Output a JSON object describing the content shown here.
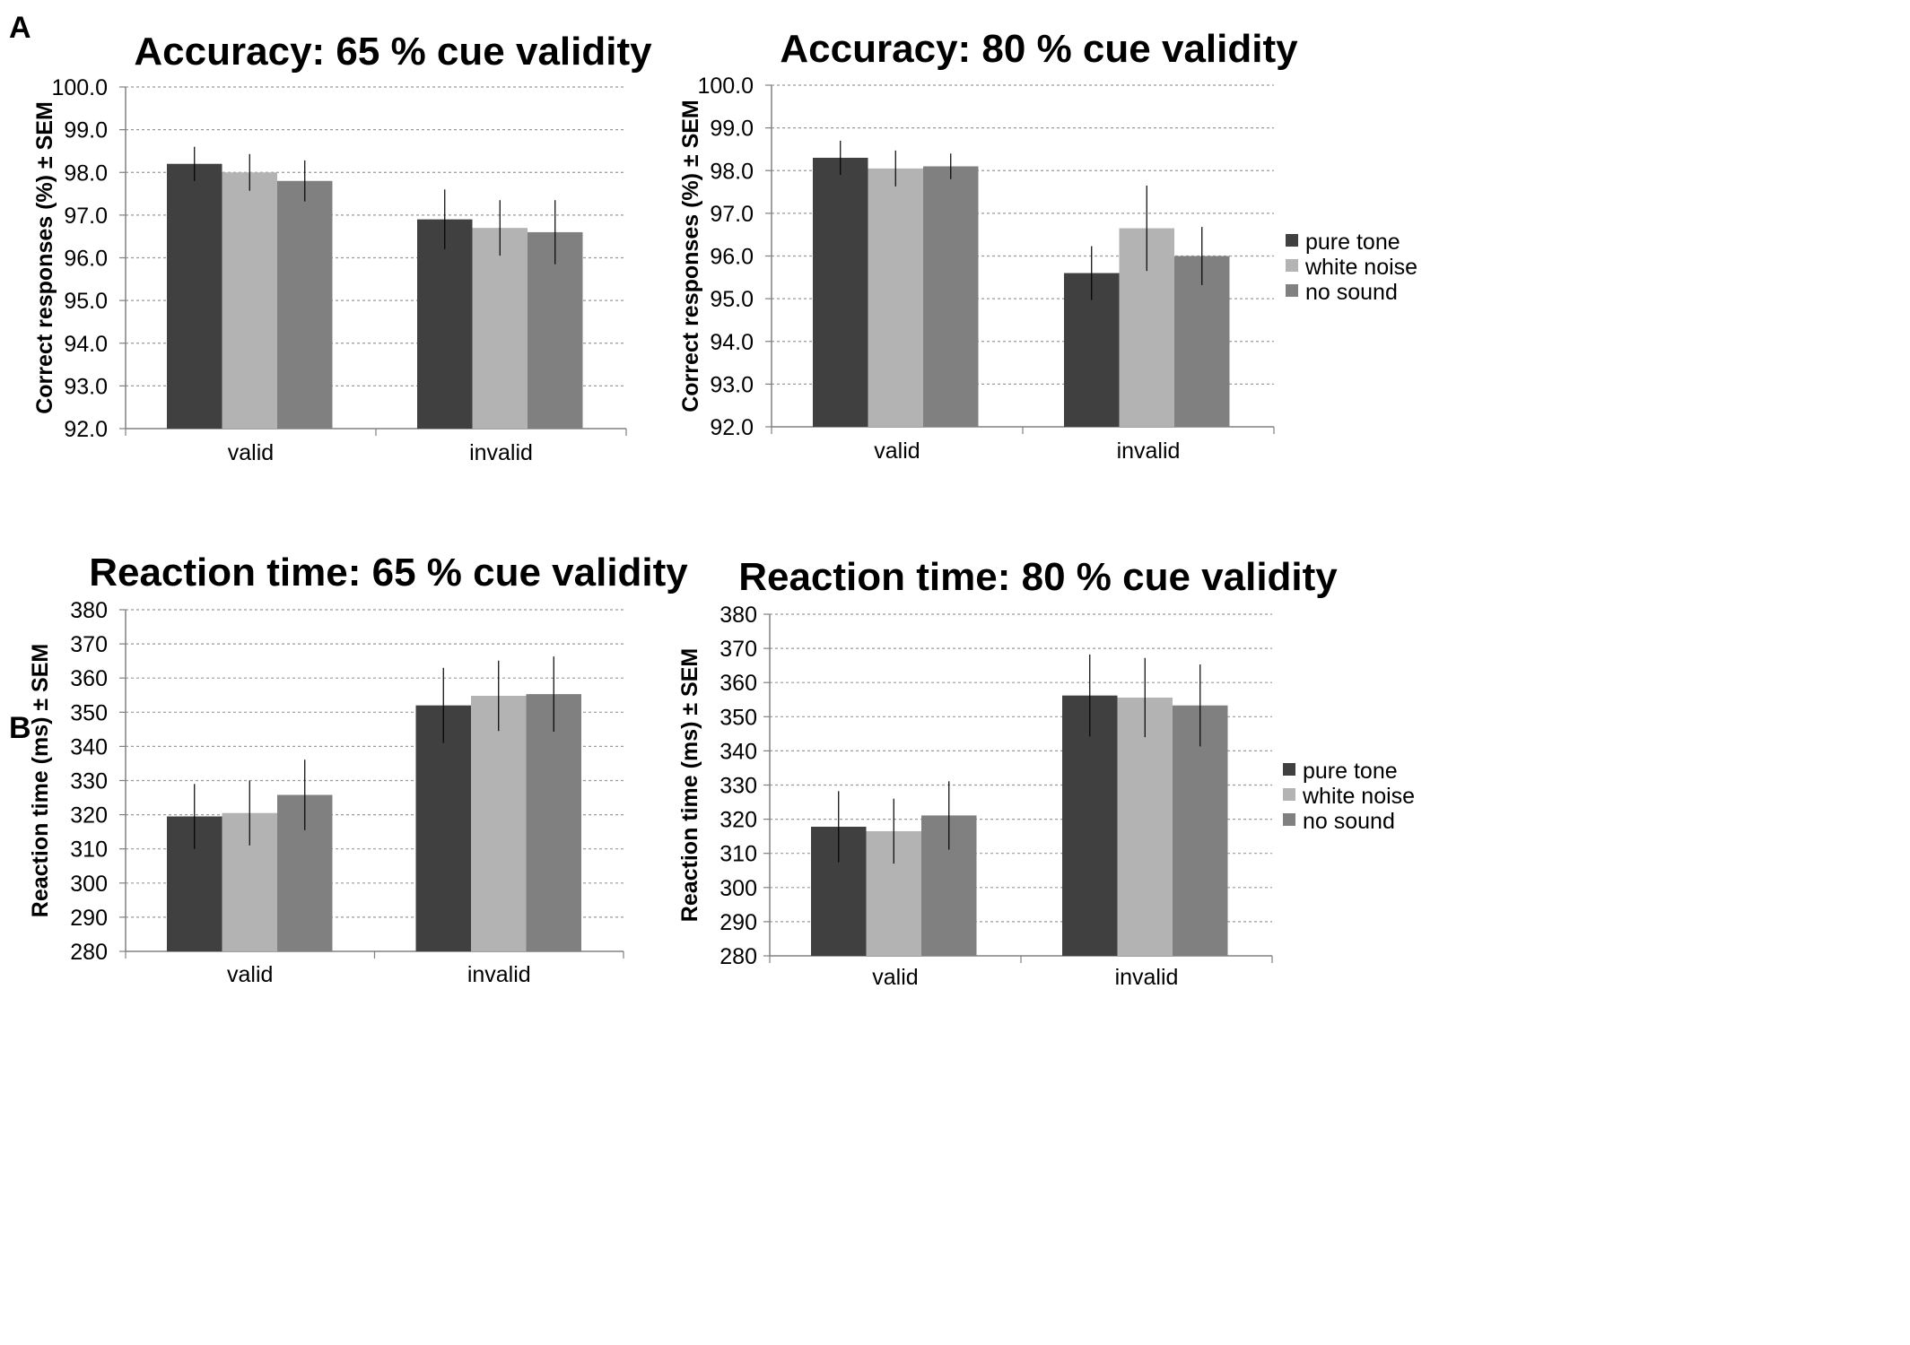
{
  "figure": {
    "panel_labels": [
      "A",
      "B"
    ]
  },
  "legend": {
    "items": [
      {
        "label": "pure tone",
        "color": "#404040"
      },
      {
        "label": "white noise",
        "color": "#b3b3b3"
      },
      {
        "label": "no sound",
        "color": "#808080"
      }
    ]
  },
  "chart_data": [
    {
      "type": "bar",
      "title": "Accuracy: 65 % cue validity",
      "xlabel": "",
      "ylabel": "Correct responses (%) ± SEM",
      "categories": [
        "valid",
        "invalid"
      ],
      "ylim": [
        92.0,
        100.0
      ],
      "yticks": [
        "92.0",
        "93.0",
        "94.0",
        "95.0",
        "96.0",
        "97.0",
        "98.0",
        "99.0",
        "100.0"
      ],
      "grid": true,
      "legend": "none",
      "series": [
        {
          "name": "pure tone",
          "color": "#404040",
          "values": [
            98.2,
            96.9
          ],
          "errors": [
            0.4,
            0.7
          ]
        },
        {
          "name": "white noise",
          "color": "#b3b3b3",
          "values": [
            98.0,
            96.7
          ],
          "errors": [
            0.43,
            0.65
          ]
        },
        {
          "name": "no sound",
          "color": "#808080",
          "values": [
            97.8,
            96.6
          ],
          "errors": [
            0.48,
            0.75
          ]
        }
      ]
    },
    {
      "type": "bar",
      "title": "Accuracy: 80 % cue validity",
      "xlabel": "",
      "ylabel": "Correct responses (%) ± SEM",
      "categories": [
        "valid",
        "invalid"
      ],
      "ylim": [
        92.0,
        100.0
      ],
      "yticks": [
        "92.0",
        "93.0",
        "94.0",
        "95.0",
        "96.0",
        "97.0",
        "98.0",
        "99.0",
        "100.0"
      ],
      "grid": true,
      "legend": "right",
      "series": [
        {
          "name": "pure tone",
          "color": "#404040",
          "values": [
            98.3,
            95.6
          ],
          "errors": [
            0.4,
            0.63
          ]
        },
        {
          "name": "white noise",
          "color": "#b3b3b3",
          "values": [
            98.05,
            96.65
          ],
          "errors": [
            0.42,
            1.0
          ]
        },
        {
          "name": "no sound",
          "color": "#808080",
          "values": [
            98.1,
            96.0
          ],
          "errors": [
            0.3,
            0.68
          ]
        }
      ]
    },
    {
      "type": "bar",
      "title": "Reaction time: 65 % cue validity",
      "xlabel": "",
      "ylabel": "Reaction time (ms) ± SEM",
      "categories": [
        "valid",
        "invalid"
      ],
      "ylim": [
        280,
        380
      ],
      "yticks": [
        "280",
        "290",
        "300",
        "310",
        "320",
        "330",
        "340",
        "350",
        "360",
        "370",
        "380"
      ],
      "grid": true,
      "legend": "none",
      "series": [
        {
          "name": "pure tone",
          "color": "#404040",
          "values": [
            319.5,
            352
          ],
          "errors": [
            9.5,
            11
          ]
        },
        {
          "name": "white noise",
          "color": "#b3b3b3",
          "values": [
            320.5,
            354.8
          ],
          "errors": [
            9.5,
            10.3
          ]
        },
        {
          "name": "no sound",
          "color": "#808080",
          "values": [
            325.8,
            355.3
          ],
          "errors": [
            10.3,
            11
          ]
        }
      ]
    },
    {
      "type": "bar",
      "title": "Reaction time: 80 % cue validity",
      "xlabel": "",
      "ylabel": "Reaction time (ms) ± SEM",
      "categories": [
        "valid",
        "invalid"
      ],
      "ylim": [
        280,
        380
      ],
      "yticks": [
        "280",
        "290",
        "300",
        "310",
        "320",
        "330",
        "340",
        "350",
        "360",
        "370",
        "380"
      ],
      "grid": true,
      "legend": "right",
      "series": [
        {
          "name": "pure tone",
          "color": "#404040",
          "values": [
            317.8,
            356.2
          ],
          "errors": [
            10.4,
            12
          ]
        },
        {
          "name": "white noise",
          "color": "#b3b3b3",
          "values": [
            316.5,
            355.6
          ],
          "errors": [
            9.5,
            11.6
          ]
        },
        {
          "name": "no sound",
          "color": "#808080",
          "values": [
            321.1,
            353.3
          ],
          "errors": [
            10,
            12
          ]
        }
      ]
    }
  ]
}
